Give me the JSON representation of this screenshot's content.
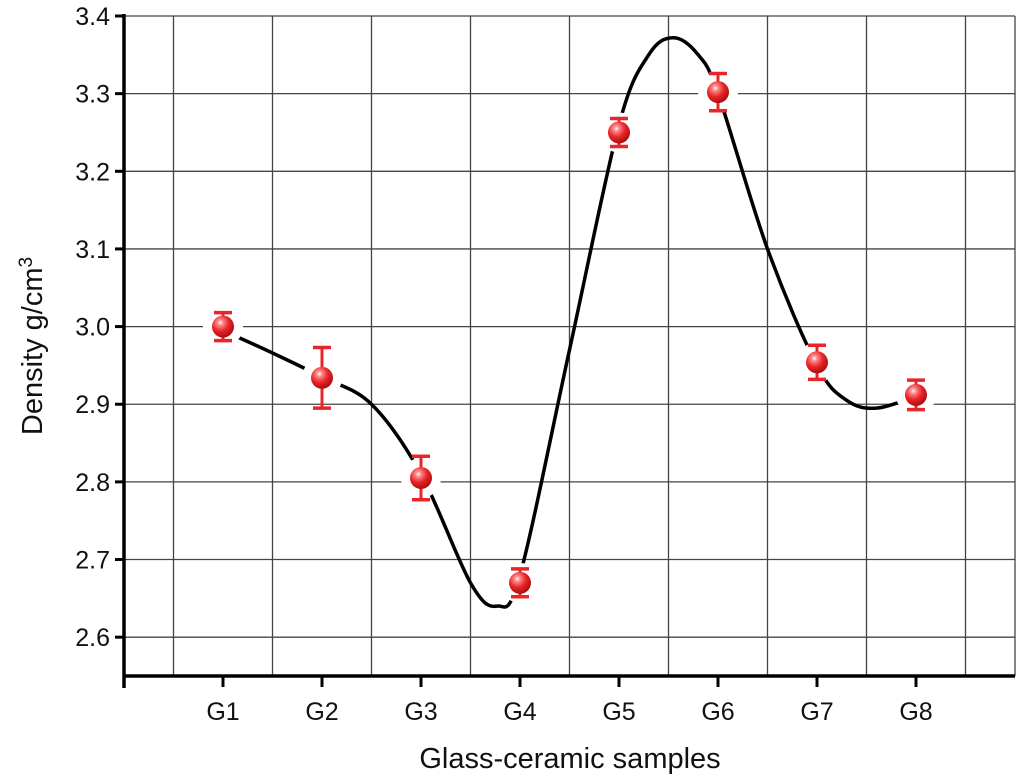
{
  "chart_data": {
    "type": "line",
    "title": "",
    "xlabel": "Glass-ceramic samples",
    "ylabel": "Density g/cm",
    "ylabel_superscript": "3",
    "categories": [
      "G1",
      "G2",
      "G3",
      "G4",
      "G5",
      "G6",
      "G7",
      "G8"
    ],
    "x": [
      1,
      2,
      3,
      4,
      5,
      6,
      7,
      8
    ],
    "values": [
      3.0,
      2.934,
      2.805,
      2.67,
      3.25,
      3.302,
      2.954,
      2.912
    ],
    "errors": [
      0.018,
      0.039,
      0.028,
      0.018,
      0.018,
      0.024,
      0.022,
      0.019
    ],
    "xlim": [
      0,
      9
    ],
    "ylim": [
      2.55,
      3.4
    ],
    "yticks": [
      "2.6",
      "2.7",
      "2.8",
      "2.9",
      "3.0",
      "3.1",
      "3.2",
      "3.3",
      "3.4"
    ],
    "grid": true,
    "marker_color": "#e8262a",
    "line_color": "#000000",
    "fit_curve": [
      [
        1,
        2.995
      ],
      [
        1.5,
        2.966
      ],
      [
        2,
        2.935
      ],
      [
        2.5,
        2.9
      ],
      [
        3,
        2.81
      ],
      [
        3.5,
        2.67
      ],
      [
        3.77,
        2.64
      ],
      [
        4,
        2.68
      ],
      [
        4.5,
        2.97
      ],
      [
        5,
        3.26
      ],
      [
        5.3,
        3.35
      ],
      [
        5.55,
        3.372
      ],
      [
        5.8,
        3.35
      ],
      [
        6,
        3.3
      ],
      [
        6.5,
        3.1
      ],
      [
        7,
        2.95
      ],
      [
        7.3,
        2.905
      ],
      [
        7.6,
        2.895
      ],
      [
        8,
        2.91
      ]
    ]
  }
}
